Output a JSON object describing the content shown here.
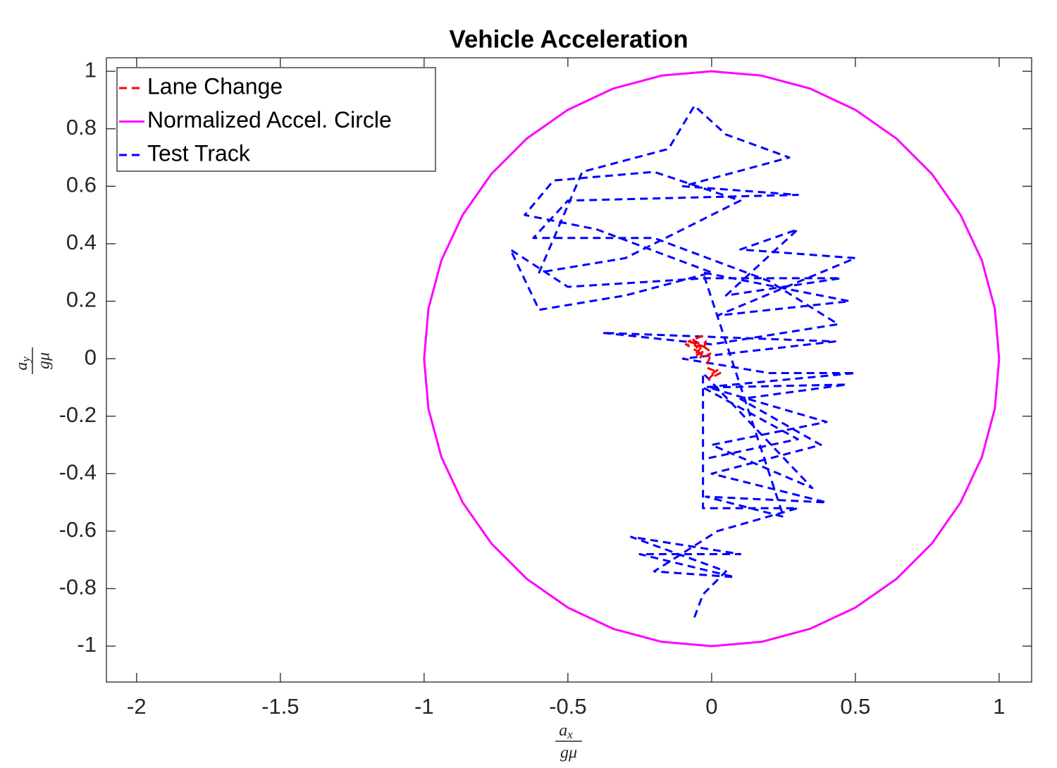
{
  "chart_data": {
    "type": "line",
    "title": "Vehicle Acceleration",
    "xlabel": {
      "numerator": [
        "a",
        "x"
      ],
      "denominator": "gμ"
    },
    "ylabel": {
      "numerator": [
        "a",
        "y"
      ],
      "denominator": "gμ"
    },
    "xlim": [
      -2.105,
      1.113
    ],
    "ylim": [
      -1.125,
      1.047
    ],
    "xticks": [
      -2,
      -1.5,
      -1,
      -0.5,
      0,
      0.5,
      1
    ],
    "yticks": [
      -1,
      -0.8,
      -0.6,
      -0.4,
      -0.2,
      0,
      0.2,
      0.4,
      0.6,
      0.8,
      1
    ],
    "grid": false,
    "legend": "upper-left",
    "series": [
      {
        "name": "Lane Change",
        "color": "#ff0000",
        "style": "dashed",
        "x": [
          -0.03,
          -0.08,
          -0.02,
          -0.09,
          -0.04,
          -0.07,
          -0.01,
          -0.06,
          -0.02,
          -0.04,
          0.0,
          -0.02,
          0.03,
          -0.01,
          0.02,
          -0.01
        ],
        "values": [
          0.08,
          0.06,
          0.04,
          0.05,
          0.02,
          0.07,
          0.03,
          0.01,
          0.06,
          0.0,
          0.02,
          -0.03,
          -0.05,
          -0.07,
          -0.04,
          -0.06
        ]
      },
      {
        "name": "Normalized Accel. Circle",
        "color": "#ff00ff",
        "style": "solid",
        "x": [
          1,
          0.985,
          0.94,
          0.866,
          0.766,
          0.643,
          0.5,
          0.342,
          0.174,
          0,
          -0.174,
          -0.342,
          -0.5,
          -0.643,
          -0.766,
          -0.866,
          -0.94,
          -0.985,
          -1,
          -0.985,
          -0.94,
          -0.866,
          -0.766,
          -0.643,
          -0.5,
          -0.342,
          -0.174,
          0,
          0.174,
          0.342,
          0.5,
          0.643,
          0.766,
          0.866,
          0.94,
          0.985,
          1
        ],
        "values": [
          0,
          0.174,
          0.342,
          0.5,
          0.643,
          0.766,
          0.866,
          0.94,
          0.985,
          1,
          0.985,
          0.94,
          0.866,
          0.766,
          0.643,
          0.5,
          0.342,
          0.174,
          0,
          -0.174,
          -0.342,
          -0.5,
          -0.643,
          -0.766,
          -0.866,
          -0.94,
          -0.985,
          -1,
          -0.985,
          -0.94,
          -0.866,
          -0.766,
          -0.643,
          -0.5,
          -0.342,
          -0.174,
          0
        ]
      },
      {
        "name": "Test Track",
        "color": "#0000ff",
        "style": "dashed",
        "x": [
          -0.06,
          -0.03,
          0.05,
          -0.28,
          0.1,
          -0.25,
          0.08,
          -0.2,
          0.02,
          0.3,
          -0.03,
          -0.03,
          0.35,
          0.0,
          0.4,
          -0.01,
          0.47,
          0.1,
          0.38,
          0.0,
          0.4,
          -0.02,
          0.25,
          -0.03,
          0.48,
          0.02,
          0.5,
          0.1,
          0.3,
          0.05,
          0.45,
          -0.02,
          -0.5,
          -0.7,
          -0.6,
          -0.3,
          0.0,
          -0.4,
          -0.65,
          -0.55,
          -0.2,
          0.1,
          -0.3,
          -0.6,
          -0.45,
          -0.15,
          -0.06,
          0.05,
          0.27,
          -0.1,
          0.3,
          -0.5,
          -0.62,
          -0.2,
          0.2,
          0.44,
          0.0,
          -0.38,
          0.43,
          -0.1,
          0.2,
          0.5,
          -0.03,
          0.3,
          -0.03
        ],
        "values": [
          -0.9,
          -0.82,
          -0.74,
          -0.62,
          -0.68,
          -0.68,
          -0.76,
          -0.74,
          -0.6,
          -0.52,
          -0.52,
          -0.05,
          -0.45,
          -0.3,
          -0.22,
          -0.1,
          -0.09,
          -0.14,
          -0.3,
          -0.4,
          -0.5,
          -0.48,
          -0.55,
          0.3,
          0.2,
          0.15,
          0.35,
          0.38,
          0.45,
          0.22,
          0.28,
          0.28,
          0.25,
          0.38,
          0.17,
          0.22,
          0.3,
          0.45,
          0.5,
          0.62,
          0.65,
          0.55,
          0.35,
          0.3,
          0.65,
          0.73,
          0.88,
          0.78,
          0.7,
          0.6,
          0.57,
          0.55,
          0.42,
          0.42,
          0.27,
          0.12,
          0.05,
          0.09,
          0.06,
          0.0,
          -0.05,
          -0.05,
          -0.1,
          -0.28,
          -0.35
        ]
      }
    ]
  }
}
